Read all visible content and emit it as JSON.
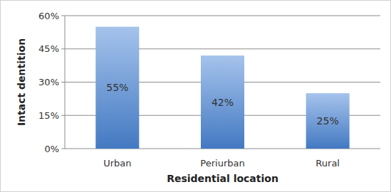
{
  "chart_data": {
    "type": "bar",
    "x_label": "Residential location",
    "y_label": "Intact dentition",
    "categories": [
      "Urban",
      "Periurban",
      "Rural"
    ],
    "values": [
      55,
      42,
      25
    ],
    "value_labels": [
      "55%",
      "42%",
      "25%"
    ],
    "color": "#4a86d8",
    "ylim": [
      0,
      60
    ],
    "yticks": [
      {
        "value": 0,
        "label": "0%"
      },
      {
        "value": 15,
        "label": "15%"
      },
      {
        "value": 30,
        "label": "30%"
      },
      {
        "value": 45,
        "label": "45%"
      },
      {
        "value": 60,
        "label": "60%"
      }
    ],
    "grid": true,
    "data_labels": true
  }
}
